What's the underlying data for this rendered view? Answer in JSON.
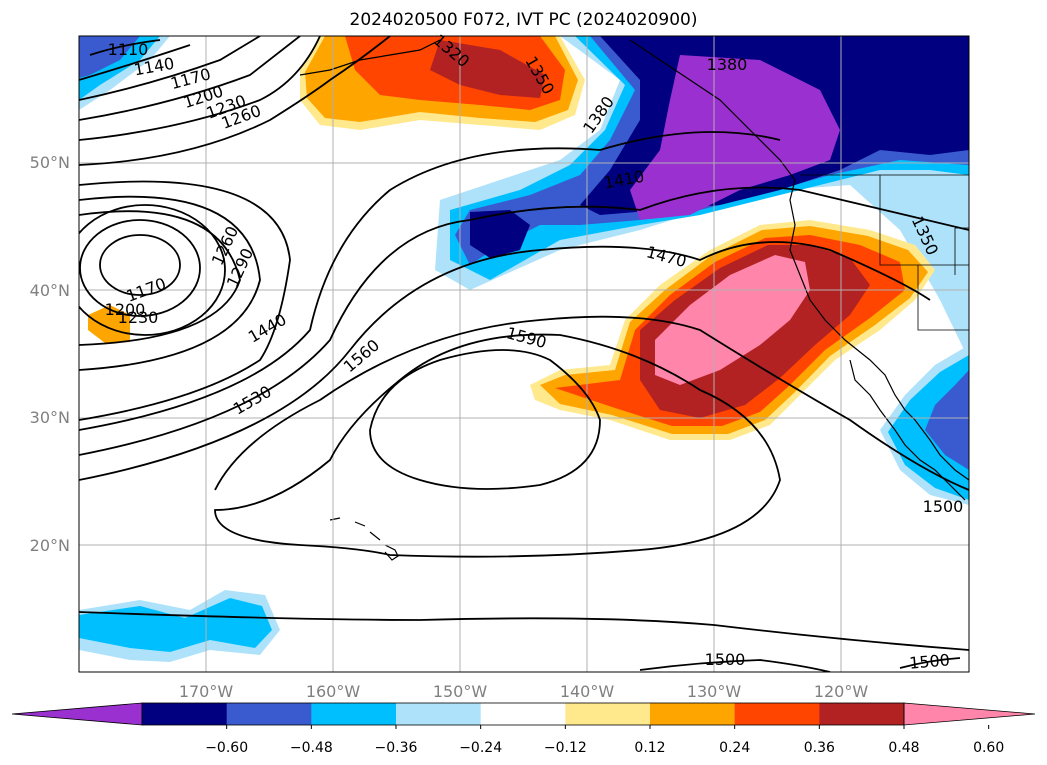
{
  "title": "2024020500 F072, IVT PC (2024020900)",
  "map": {
    "lat_labels": [
      "50°N",
      "40°N",
      "30°N",
      "20°N"
    ],
    "lon_labels": [
      "170°W",
      "160°W",
      "150°W",
      "140°W",
      "130°W",
      "120°W"
    ],
    "contour_labels": [
      "1110",
      "1140",
      "1170",
      "1200",
      "1230",
      "1260",
      "1320",
      "1350",
      "1380",
      "1380",
      "1410",
      "1350",
      "1260",
      "1290",
      "1470",
      "1170",
      "1200",
      "1230",
      "1440",
      "1590",
      "1560",
      "1530",
      "1500",
      "1500",
      "1500"
    ]
  },
  "colorbar": {
    "colors": [
      "#9b30d0",
      "#000080",
      "#3a5bd0",
      "#00bfff",
      "#aee2fa",
      "#ffffff",
      "#ffe98c",
      "#ffa500",
      "#ff4500",
      "#b22222",
      "#ff85aa"
    ],
    "tick_labels": [
      "−0.60",
      "−0.48",
      "−0.36",
      "−0.24",
      "−0.12",
      "0.12",
      "0.24",
      "0.36",
      "0.48",
      "0.60"
    ]
  }
}
